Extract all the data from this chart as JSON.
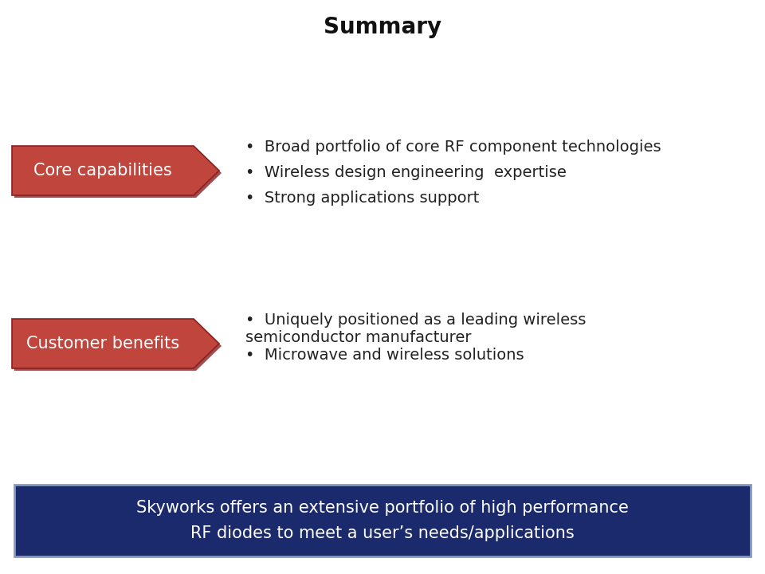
{
  "title": "Summary",
  "title_fontsize": 20,
  "background_color": "#ffffff",
  "arrow_color": "#c0453c",
  "arrow_edge_color": "#8b2020",
  "section1_label": "Core capabilities",
  "section1_bullets": [
    "Broad portfolio of core RF component technologies",
    "Wireless design engineering  expertise",
    "Strong applications support"
  ],
  "section2_label": "Customer benefits",
  "section2_bullets": [
    "Uniquely positioned as a leading wireless\nsemiconductor manufacturer",
    "Microwave and wireless solutions"
  ],
  "label_fontsize": 15,
  "bullet_fontsize": 14,
  "arrow_label_color": "#ffffff",
  "footer_bg_color": "#1a2a6c",
  "footer_border_color": "#8899bb",
  "footer_text_color": "#ffffff",
  "footer_text": "Skyworks offers an extensive portfolio of high performance\nRF diodes to meet a user’s needs/applications",
  "footer_fontsize": 15
}
